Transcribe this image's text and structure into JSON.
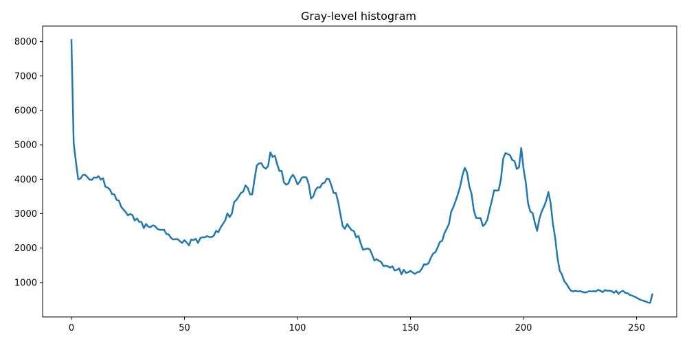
{
  "chart_data": {
    "type": "line",
    "title": "Gray-level histogram",
    "xlabel": "",
    "ylabel": "",
    "xlim": [
      -12.75,
      267.75
    ],
    "ylim": [
      0,
      8450
    ],
    "x_ticks": [
      0,
      50,
      100,
      150,
      200,
      250
    ],
    "y_ticks": [
      1000,
      2000,
      3000,
      4000,
      5000,
      6000,
      7000,
      8000
    ],
    "grid": false,
    "legend": "none",
    "line_color": "#1f77b4",
    "series": [
      {
        "x_start": 0,
        "x_step": 1,
        "values": [
          8050,
          5050,
          4500,
          4000,
          4020,
          4120,
          4130,
          4070,
          3990,
          3980,
          4050,
          4040,
          4090,
          3990,
          4030,
          3780,
          3760,
          3700,
          3570,
          3560,
          3400,
          3380,
          3200,
          3120,
          3050,
          2950,
          2990,
          2960,
          2800,
          2860,
          2760,
          2760,
          2580,
          2700,
          2620,
          2610,
          2660,
          2640,
          2560,
          2530,
          2530,
          2530,
          2410,
          2400,
          2300,
          2250,
          2260,
          2260,
          2200,
          2150,
          2230,
          2160,
          2080,
          2250,
          2230,
          2270,
          2150,
          2290,
          2320,
          2310,
          2350,
          2320,
          2320,
          2360,
          2500,
          2460,
          2600,
          2700,
          2800,
          3010,
          2900,
          3010,
          3340,
          3400,
          3500,
          3600,
          3640,
          3820,
          3750,
          3560,
          3560,
          4000,
          4400,
          4460,
          4470,
          4350,
          4310,
          4380,
          4780,
          4650,
          4680,
          4440,
          4240,
          4240,
          3910,
          3840,
          3880,
          4050,
          4130,
          4020,
          3850,
          3930,
          4050,
          4060,
          4050,
          3850,
          3440,
          3500,
          3690,
          3770,
          3760,
          3880,
          3900,
          4020,
          4000,
          3820,
          3600,
          3600,
          3340,
          2980,
          2640,
          2560,
          2700,
          2600,
          2520,
          2490,
          2310,
          2350,
          2130,
          1950,
          1970,
          1990,
          1960,
          1810,
          1640,
          1680,
          1630,
          1600,
          1480,
          1490,
          1470,
          1430,
          1470,
          1350,
          1370,
          1410,
          1240,
          1370,
          1280,
          1300,
          1340,
          1290,
          1250,
          1300,
          1310,
          1400,
          1530,
          1520,
          1560,
          1720,
          1840,
          1880,
          2020,
          2180,
          2210,
          2430,
          2560,
          2700,
          3060,
          3200,
          3380,
          3570,
          3800,
          4120,
          4330,
          4200,
          3800,
          3580,
          3100,
          2880,
          2870,
          2870,
          2640,
          2700,
          2830,
          3120,
          3380,
          3680,
          3670,
          3680,
          4000,
          4600,
          4760,
          4730,
          4700,
          4560,
          4530,
          4300,
          4350,
          4910,
          4300,
          3900,
          3300,
          3060,
          3020,
          2740,
          2500,
          2850,
          3060,
          3200,
          3370,
          3630,
          3300,
          2700,
          2300,
          1720,
          1350,
          1230,
          1040,
          960,
          850,
          760,
          740,
          760,
          740,
          750,
          730,
          710,
          720,
          750,
          740,
          750,
          740,
          790,
          760,
          720,
          780,
          760,
          760,
          750,
          700,
          760,
          670,
          730,
          760,
          700,
          690,
          640,
          620,
          590,
          560,
          520,
          490,
          470,
          450,
          420,
          410,
          660
        ]
      }
    ]
  }
}
